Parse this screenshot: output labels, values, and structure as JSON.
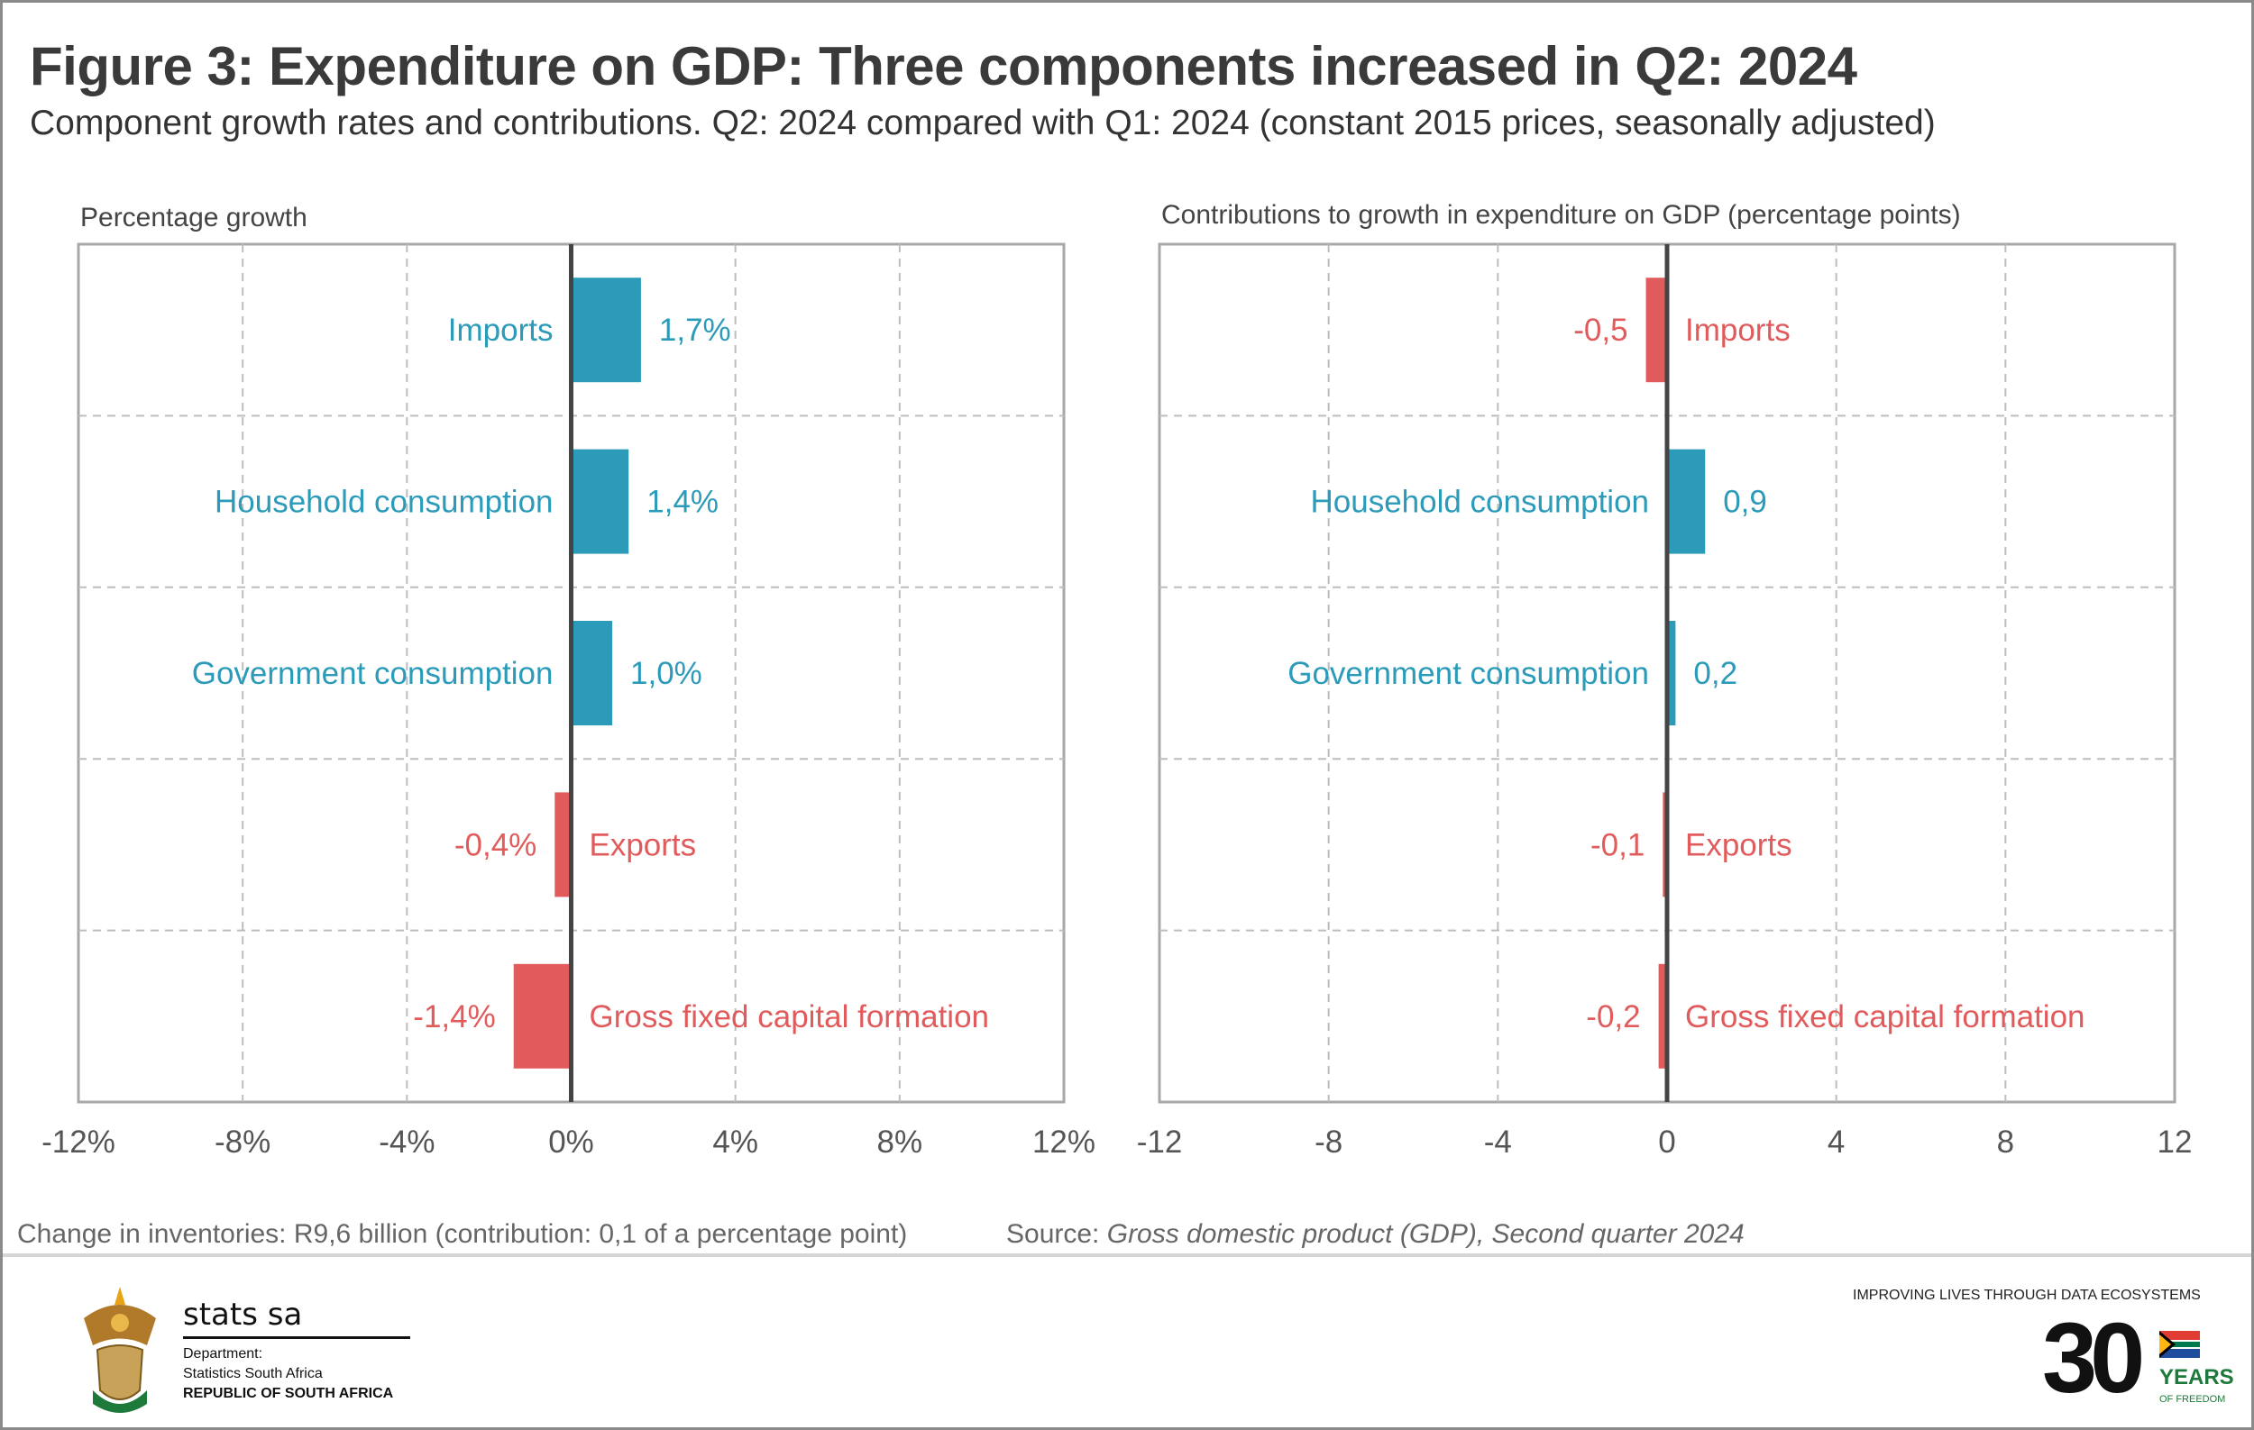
{
  "title": "Figure 3: Expenditure on GDP: Three components increased in Q2: 2024",
  "subtitle": "Component growth rates and contributions. Q2: 2024 compared with Q1: 2024 (constant 2015 prices, seasonally adjusted)",
  "colors": {
    "positive": "#2b9bb9",
    "negative": "#e15b5c"
  },
  "chart_data": [
    {
      "type": "bar",
      "orientation": "horizontal",
      "title": "Percentage growth",
      "categories": [
        "Imports",
        "Household consumption",
        "Government consumption",
        "Exports",
        "Gross fixed capital formation"
      ],
      "values": [
        1.7,
        1.4,
        1.0,
        -0.4,
        -1.4
      ],
      "value_labels": [
        "1,7%",
        "1,4%",
        "1,0%",
        "-0,4%",
        "-1,4%"
      ],
      "xlim": [
        -12,
        12
      ],
      "xticks": [
        -12,
        -8,
        -4,
        0,
        4,
        8,
        12
      ],
      "xtick_labels": [
        "-12%",
        "-8%",
        "-4%",
        "0%",
        "4%",
        "8%",
        "12%"
      ],
      "grid": true
    },
    {
      "type": "bar",
      "orientation": "horizontal",
      "title": "Contributions to growth in expenditure on GDP (percentage points)",
      "categories": [
        "Imports",
        "Household consumption",
        "Government consumption",
        "Exports",
        "Gross fixed capital formation"
      ],
      "values": [
        -0.5,
        0.9,
        0.2,
        -0.1,
        -0.2
      ],
      "value_labels": [
        "-0,5",
        "0,9",
        "0,2",
        "-0,1",
        "-0,2"
      ],
      "xlim": [
        -12,
        12
      ],
      "xticks": [
        -12,
        -8,
        -4,
        0,
        4,
        8,
        12
      ],
      "xtick_labels": [
        "-12",
        "-8",
        "-4",
        "0",
        "4",
        "8",
        "12"
      ],
      "grid": true
    }
  ],
  "footnote": "Change in inventories: R9,6 billion (contribution: 0,1 of a percentage point)",
  "source_prefix": "Source: ",
  "source_title": "Gross domestic product (GDP), Second quarter 2024",
  "footer": {
    "org_name": "stats sa",
    "dept_label": "Department:",
    "dept_name": "Statistics South Africa",
    "country": "REPUBLIC OF SOUTH AFRICA",
    "tagline": "IMPROVING LIVES THROUGH DATA ECOSYSTEMS",
    "anniv_number": "30",
    "anniv_years": "YEARS",
    "anniv_sub": "OF FREEDOM"
  }
}
